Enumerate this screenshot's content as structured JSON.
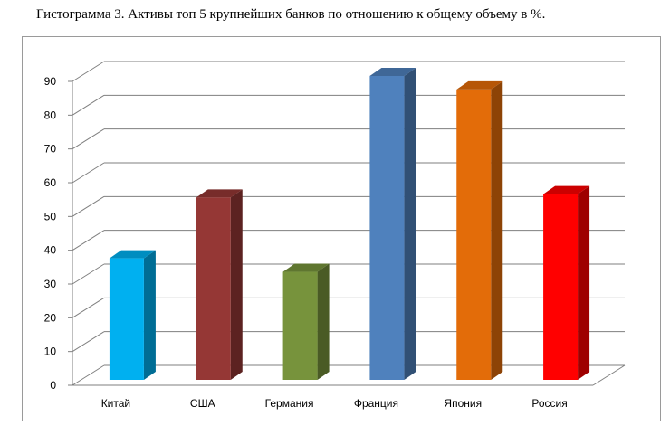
{
  "title": "Гистограмма 3. Активы топ 5 крупнейших банков по отношению к общему объему в %.",
  "chart_data": {
    "type": "bar",
    "three_d": true,
    "categories": [
      "Китай",
      "США",
      "Германия",
      "Франция",
      "Япония",
      "Россия"
    ],
    "values": [
      36,
      54,
      32,
      90,
      86,
      55
    ],
    "colors": [
      "#00b0f0",
      "#953735",
      "#77933c",
      "#4f81bd",
      "#e36c09",
      "#ff0000"
    ],
    "ylim": [
      0,
      90
    ],
    "yticks": [
      0,
      10,
      20,
      30,
      40,
      50,
      60,
      70,
      80,
      90
    ],
    "grid": true,
    "legend": "none"
  }
}
